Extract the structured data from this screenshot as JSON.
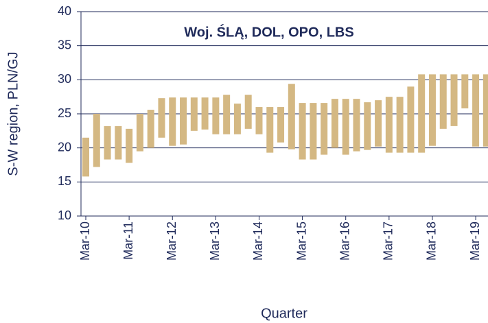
{
  "chart_data": {
    "type": "range_bar",
    "title": "Woj. ŚLĄ, DOL, OPO, LBS",
    "x_label": "Quarter",
    "y_label": "S-W region, PLN/GJ",
    "color": "#d4b883",
    "categories": [
      "Mar-10",
      null,
      null,
      null,
      "Mar-11",
      null,
      null,
      null,
      "Mar-12",
      null,
      null,
      null,
      "Mar-13",
      null,
      null,
      null,
      "Mar-14",
      null,
      null,
      null,
      "Mar-15",
      null,
      null,
      null,
      "Mar-16",
      null,
      null,
      null,
      "Mar-17",
      null,
      null,
      null,
      "Mar-18",
      null,
      null,
      null,
      "Mar-19",
      null
    ],
    "low": [
      15.8,
      17.2,
      18.3,
      18.3,
      17.8,
      19.5,
      20.0,
      21.5,
      20.3,
      20.5,
      22.5,
      22.7,
      22.0,
      22.0,
      22.0,
      22.8,
      22.0,
      19.3,
      20.8,
      19.8,
      18.3,
      18.3,
      19.0,
      20.0,
      19.0,
      19.5,
      19.7,
      20.2,
      19.3,
      19.3,
      19.3,
      19.3,
      20.3,
      22.8,
      23.2,
      25.8,
      20.2,
      20.2
    ],
    "high": [
      21.5,
      25.0,
      23.2,
      23.2,
      22.8,
      25.0,
      25.6,
      27.3,
      27.4,
      27.4,
      27.4,
      27.4,
      27.4,
      27.8,
      26.5,
      27.8,
      26.0,
      26.0,
      26.0,
      29.4,
      26.6,
      26.6,
      26.6,
      27.2,
      27.2,
      27.2,
      26.7,
      27.0,
      27.5,
      27.5,
      29.0,
      30.8,
      30.8,
      30.8,
      30.8,
      30.8,
      30.8,
      30.8
    ],
    "ylim": [
      10,
      40
    ],
    "yticks": [
      10,
      15,
      20,
      25,
      30,
      35,
      40
    ],
    "grid": true
  }
}
